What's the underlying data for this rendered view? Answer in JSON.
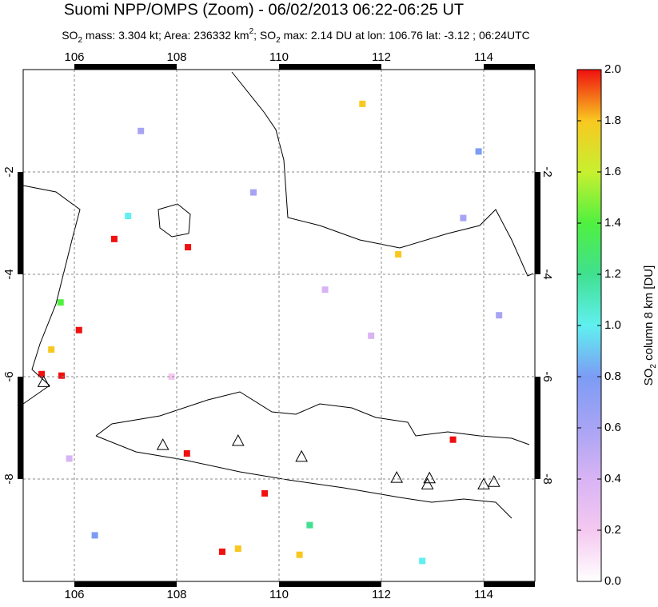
{
  "chart_data": {
    "type": "map",
    "title": "Suomi NPP/OMPS (Zoom) - 06/02/2013 06:22-06:25 UT",
    "subtitle": [
      "SO",
      "2",
      " mass: 3.304 kt; Area: 236332 km",
      "2",
      "; SO",
      "2",
      " max: 2.14 DU at lon: 106.76 lat: -3.12 ; 06:24UTC"
    ],
    "xlim": [
      105,
      115
    ],
    "ylim": [
      -10,
      0
    ],
    "xticks": [
      106,
      108,
      110,
      112,
      114
    ],
    "yticks": [
      -2,
      -4,
      -6,
      -8
    ],
    "grid": true,
    "colorbar": {
      "label": [
        "SO",
        "2",
        " column 8 km [DU]"
      ],
      "lim": [
        0,
        2
      ],
      "ticks": [
        {
          "value": 0,
          "label": "0.0"
        },
        0.2,
        0.4,
        0.6,
        0.8,
        {
          "value": 1,
          "label": "1.0"
        },
        1.2,
        1.4,
        1.6,
        1.8,
        {
          "value": 2,
          "label": "2.0"
        }
      ],
      "colormap": [
        "#ffffff",
        "#f4c8f0",
        "#d8b4f4",
        "#a8a4f4",
        "#7c9cf4",
        "#60f0f0",
        "#40e090",
        "#50f040",
        "#c8f030",
        "#f8c820",
        "#f01010"
      ]
    },
    "pixels": [
      [
        106.78,
        -3.31,
        2.0
      ],
      [
        108.22,
        -3.47,
        1.95
      ],
      [
        106.09,
        -5.09,
        2.0
      ],
      [
        105.75,
        -5.98,
        1.9
      ],
      [
        105.36,
        -5.95,
        1.95
      ],
      [
        108.2,
        -7.5,
        2.0
      ],
      [
        109.72,
        -8.28,
        2.0
      ],
      [
        108.89,
        -9.42,
        2.0
      ],
      [
        110.4,
        -9.48,
        1.85
      ],
      [
        113.4,
        -7.23,
        2.0
      ],
      [
        112.33,
        -3.61,
        1.75
      ],
      [
        111.63,
        -0.67,
        1.7
      ],
      [
        105.55,
        -5.47,
        1.85
      ],
      [
        105.73,
        -4.55,
        1.3
      ],
      [
        109.2,
        -9.36,
        1.7
      ],
      [
        107.05,
        -2.86,
        1.0
      ],
      [
        107.3,
        -1.2,
        0.5
      ],
      [
        109.5,
        -2.4,
        0.6
      ],
      [
        110.9,
        -4.3,
        0.4
      ],
      [
        111.8,
        -5.2,
        0.3
      ],
      [
        113.6,
        -2.9,
        0.5
      ],
      [
        114.3,
        -4.8,
        0.6
      ],
      [
        106.4,
        -9.1,
        0.8
      ],
      [
        112.8,
        -9.6,
        0.9
      ],
      [
        110.6,
        -8.9,
        1.2
      ],
      [
        107.9,
        -6.0,
        0.2
      ],
      [
        113.9,
        -1.6,
        0.7
      ],
      [
        105.9,
        -7.6,
        0.4
      ]
    ],
    "volcanoes": [
      [
        105.4,
        -6.1
      ],
      [
        107.73,
        -7.33
      ],
      [
        109.2,
        -7.25
      ],
      [
        110.44,
        -7.56
      ],
      [
        112.3,
        -7.97
      ],
      [
        112.94,
        -7.98
      ],
      [
        112.9,
        -8.1
      ],
      [
        114.0,
        -8.1
      ],
      [
        114.2,
        -8.05
      ]
    ]
  }
}
